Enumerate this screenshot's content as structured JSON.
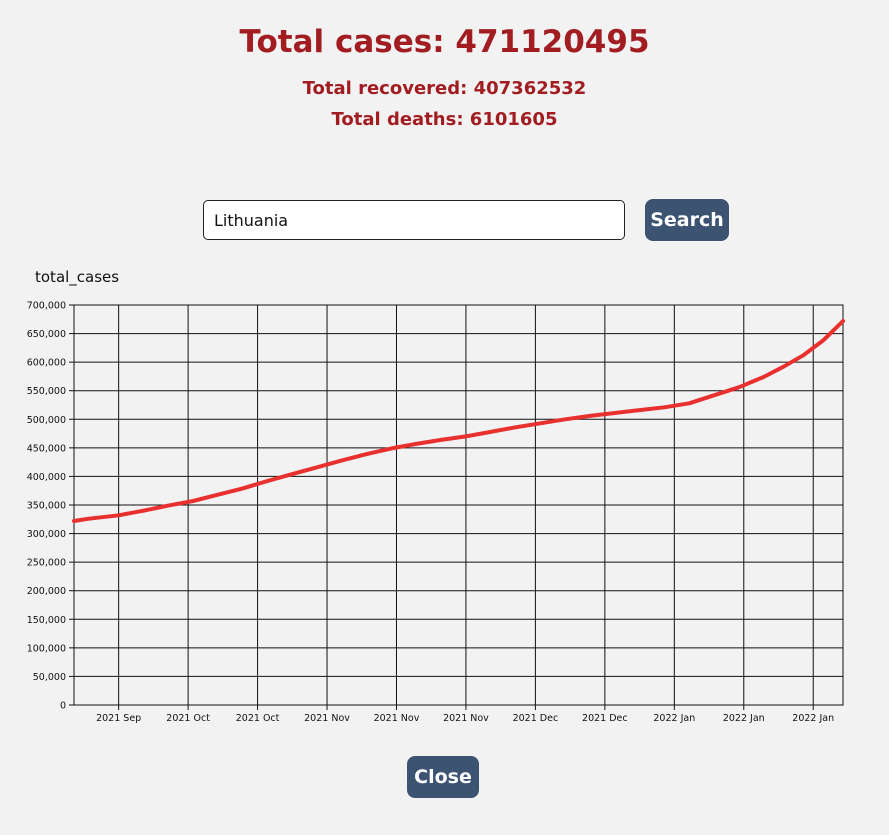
{
  "stats": {
    "total_cases": "Total cases: 471120495",
    "total_recovered": "Total recovered: 407362532",
    "total_deaths": "Total deaths: 6101605"
  },
  "search": {
    "value": "Lithuania",
    "button_label": "Search"
  },
  "close_label": "Close",
  "colors": {
    "heading": "#a11d21",
    "button": "#3c5472",
    "line": "#e8302e",
    "background": "#f2f2f2"
  },
  "chart_data": {
    "type": "line",
    "ylabel": "total_cases",
    "ylim": [
      0,
      700000
    ],
    "yticks": [
      0,
      50000,
      100000,
      150000,
      200000,
      250000,
      300000,
      350000,
      400000,
      450000,
      500000,
      550000,
      600000,
      650000,
      700000
    ],
    "x_tick_labels": [
      "2021 Sep",
      "2021 Oct",
      "2021 Oct",
      "2021 Nov",
      "2021 Nov",
      "2021 Nov",
      "2021 Dec",
      "2021 Dec",
      "2022 Jan",
      "2022 Jan",
      "2022 Jan"
    ],
    "x_tick_dates": [
      "2021-09-05",
      "2021-09-19",
      "2021-10-03",
      "2021-10-17",
      "2021-10-31",
      "2021-11-14",
      "2021-11-28",
      "2021-12-12",
      "2021-12-26",
      "2022-01-09",
      "2022-01-23"
    ],
    "xlim": [
      "2021-08-27",
      "2022-01-29"
    ],
    "grid": true,
    "series": [
      {
        "x": [
          "2021-08-27",
          "2021-08-30",
          "2021-09-05",
          "2021-09-10",
          "2021-09-15",
          "2021-09-20",
          "2021-09-25",
          "2021-09-30",
          "2021-10-05",
          "2021-10-10",
          "2021-10-15",
          "2021-10-20",
          "2021-10-25",
          "2021-10-30",
          "2021-11-04",
          "2021-11-09",
          "2021-11-14",
          "2021-11-19",
          "2021-11-24",
          "2021-11-29",
          "2021-12-04",
          "2021-12-09",
          "2021-12-14",
          "2021-12-19",
          "2021-12-24",
          "2021-12-29",
          "2022-01-03",
          "2022-01-08",
          "2022-01-13",
          "2022-01-17",
          "2022-01-21",
          "2022-01-25",
          "2022-01-29"
        ],
        "y": [
          322000,
          326000,
          332000,
          340000,
          349000,
          357000,
          368000,
          379000,
          392000,
          404000,
          416000,
          428000,
          439000,
          449000,
          457000,
          464000,
          470000,
          478000,
          486000,
          493000,
          500000,
          506000,
          511000,
          516000,
          521000,
          528000,
          542000,
          556000,
          574000,
          592000,
          612000,
          638000,
          672000
        ]
      }
    ]
  }
}
